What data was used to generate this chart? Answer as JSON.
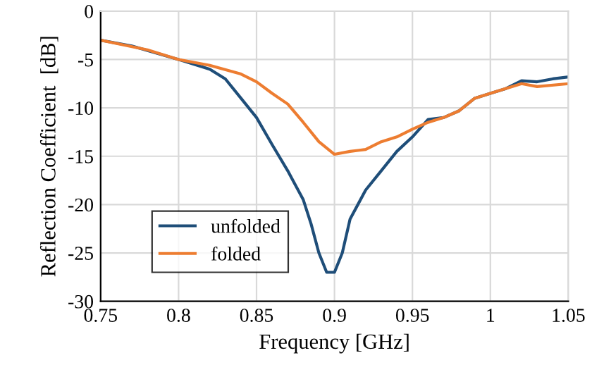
{
  "chart_data": {
    "type": "line",
    "xlabel": "Frequency [GHz]",
    "ylabel": "Reflection Coefficient  [dB]",
    "xlim": [
      0.75,
      1.05
    ],
    "xticks": [
      {
        "value": 0.75,
        "label": "0.75"
      },
      {
        "value": 0.8,
        "label": "0.8"
      },
      {
        "value": 0.85,
        "label": "0.85"
      },
      {
        "value": 0.9,
        "label": "0.9"
      },
      {
        "value": 0.95,
        "label": "0.95"
      },
      {
        "value": 1,
        "label": "1"
      },
      {
        "value": 1.05,
        "label": "1.05"
      }
    ],
    "ylim": [
      -30,
      0
    ],
    "yticks": [
      -30,
      -25,
      -20,
      -15,
      -10,
      -5,
      0
    ],
    "grid": true,
    "legend": "bottom left",
    "series": [
      {
        "name": "unfolded",
        "color": "#1f4e79",
        "x": [
          0.75,
          0.77,
          0.8,
          0.82,
          0.83,
          0.84,
          0.85,
          0.86,
          0.87,
          0.88,
          0.885,
          0.89,
          0.895,
          0.9,
          0.905,
          0.91,
          0.92,
          0.93,
          0.94,
          0.95,
          0.96,
          0.97,
          0.98,
          0.99,
          1.0,
          1.01,
          1.02,
          1.03,
          1.04,
          1.05
        ],
        "values": [
          -3,
          -3.6,
          -5,
          -6,
          -7,
          -9,
          -11,
          -13.8,
          -16.5,
          -19.5,
          -22,
          -25,
          -27,
          -27,
          -25,
          -21.5,
          -18.5,
          -16.5,
          -14.5,
          -13,
          -11.2,
          -11,
          -10.3,
          -9,
          -8.5,
          -8,
          -7.2,
          -7.3,
          -7,
          -6.8
        ]
      },
      {
        "name": "folded",
        "color": "#ed7d31",
        "x": [
          0.75,
          0.78,
          0.8,
          0.82,
          0.84,
          0.85,
          0.86,
          0.87,
          0.88,
          0.89,
          0.9,
          0.91,
          0.92,
          0.93,
          0.94,
          0.95,
          0.96,
          0.97,
          0.98,
          0.99,
          1.0,
          1.02,
          1.03,
          1.05
        ],
        "values": [
          -3,
          -4,
          -5,
          -5.6,
          -6.5,
          -7.3,
          -8.5,
          -9.6,
          -11.5,
          -13.5,
          -14.8,
          -14.5,
          -14.3,
          -13.5,
          -13,
          -12.2,
          -11.5,
          -11,
          -10.3,
          -9,
          -8.5,
          -7.5,
          -7.8,
          -7.5
        ]
      }
    ]
  }
}
